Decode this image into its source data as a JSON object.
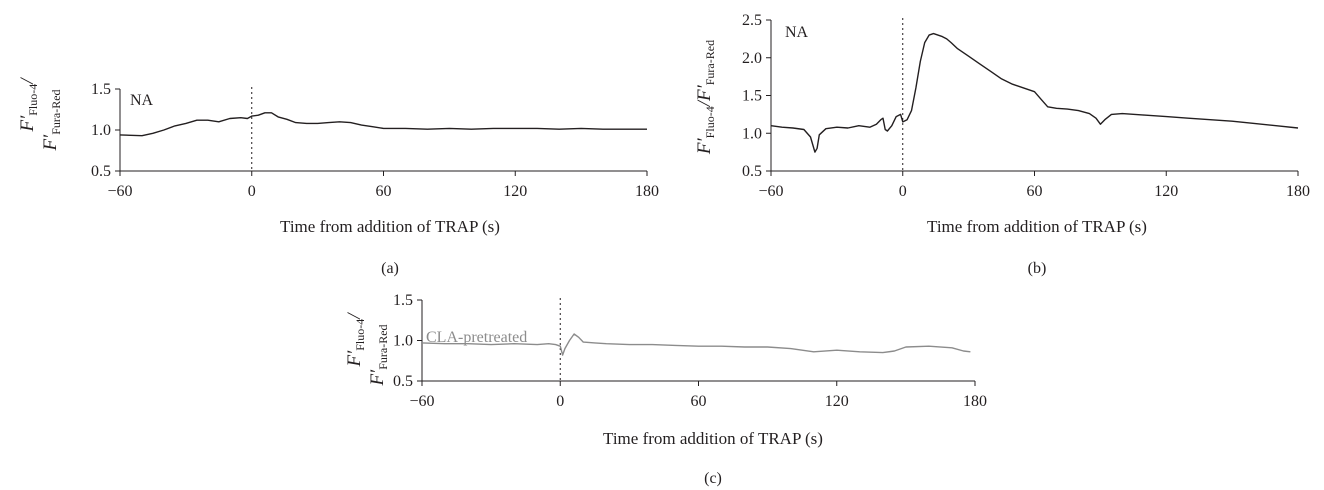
{
  "chart_data": [
    {
      "type": "line",
      "panel_label": "(a)",
      "annotation": "NA",
      "xlabel": "Time from addition of TRAP (s)",
      "ylabel": {
        "line1_main": "F′",
        "line1_sub": "Fluo-4",
        "line1_tail": "/",
        "line2_main": "F′",
        "line2_sub": "Fura-Red"
      },
      "xlim": [
        -60,
        180
      ],
      "ylim": [
        0.5,
        1.5
      ],
      "x_ticks": [
        "−60",
        "0",
        "60",
        "120",
        "180"
      ],
      "x_tick_values": [
        -60,
        0,
        60,
        120,
        180
      ],
      "y_ticks": [
        "0.5",
        "1.0",
        "1.5"
      ],
      "y_tick_values": [
        0.5,
        1.0,
        1.5
      ],
      "vline_x": 0,
      "grid": false,
      "series": [
        {
          "color": "#231f20",
          "x": [
            -60,
            -50,
            -45,
            -40,
            -35,
            -30,
            -25,
            -20,
            -15,
            -10,
            -5,
            -2,
            0,
            3,
            6,
            9,
            12,
            16,
            20,
            25,
            30,
            35,
            40,
            45,
            50,
            55,
            60,
            70,
            80,
            90,
            100,
            110,
            120,
            130,
            140,
            150,
            160,
            170,
            180
          ],
          "y": [
            0.94,
            0.93,
            0.96,
            1.0,
            1.05,
            1.08,
            1.12,
            1.12,
            1.1,
            1.14,
            1.15,
            1.14,
            1.17,
            1.18,
            1.21,
            1.21,
            1.16,
            1.13,
            1.09,
            1.08,
            1.08,
            1.09,
            1.1,
            1.09,
            1.06,
            1.04,
            1.02,
            1.02,
            1.01,
            1.02,
            1.01,
            1.02,
            1.02,
            1.02,
            1.01,
            1.02,
            1.01,
            1.01,
            1.01
          ]
        }
      ]
    },
    {
      "type": "line",
      "panel_label": "(b)",
      "annotation": "NA",
      "xlabel": "Time from addition of TRAP (s)",
      "ylabel": {
        "line1_main": "F′",
        "line1_sub": "Fluo-4",
        "line1_tail": "/F′",
        "line2_main": "",
        "line2_sub": "Fura-Red"
      },
      "xlim": [
        -60,
        180
      ],
      "ylim": [
        0.5,
        2.5
      ],
      "x_ticks": [
        "−60",
        "0",
        "60",
        "120",
        "180"
      ],
      "x_tick_values": [
        -60,
        0,
        60,
        120,
        180
      ],
      "y_ticks": [
        "0.5",
        "1.0",
        "1.5",
        "2.0",
        "2.5"
      ],
      "y_tick_values": [
        0.5,
        1.0,
        1.5,
        2.0,
        2.5
      ],
      "vline_x": 0,
      "grid": false,
      "series": [
        {
          "color": "#231f20",
          "x": [
            -60,
            -55,
            -50,
            -45,
            -42,
            -40,
            -39,
            -38,
            -35,
            -30,
            -25,
            -20,
            -15,
            -12,
            -10,
            -9,
            -8,
            -7,
            -5,
            -3,
            -1,
            0,
            2,
            4,
            6,
            8,
            10,
            12,
            14,
            16,
            18,
            20,
            22,
            25,
            30,
            35,
            40,
            45,
            50,
            55,
            60,
            63,
            66,
            70,
            75,
            80,
            85,
            88,
            90,
            92,
            95,
            100,
            110,
            120,
            130,
            140,
            150,
            160,
            170,
            180
          ],
          "y": [
            1.1,
            1.08,
            1.07,
            1.05,
            0.95,
            0.75,
            0.8,
            0.98,
            1.06,
            1.08,
            1.07,
            1.1,
            1.08,
            1.12,
            1.18,
            1.2,
            1.05,
            1.03,
            1.1,
            1.22,
            1.25,
            1.15,
            1.18,
            1.3,
            1.6,
            1.95,
            2.2,
            2.3,
            2.32,
            2.3,
            2.28,
            2.25,
            2.2,
            2.12,
            2.02,
            1.92,
            1.82,
            1.72,
            1.65,
            1.6,
            1.55,
            1.45,
            1.35,
            1.33,
            1.32,
            1.3,
            1.26,
            1.2,
            1.12,
            1.18,
            1.25,
            1.26,
            1.24,
            1.22,
            1.2,
            1.18,
            1.16,
            1.13,
            1.1,
            1.07
          ]
        }
      ]
    },
    {
      "type": "line",
      "panel_label": "(c)",
      "annotation": "CLA-pretreated",
      "xlabel": "Time from addition of TRAP (s)",
      "ylabel": {
        "line1_main": "F′",
        "line1_sub": "Fluo-4",
        "line1_tail": "/",
        "line2_main": "F′",
        "line2_sub": "Fura-Red"
      },
      "xlim": [
        -60,
        180
      ],
      "ylim": [
        0.5,
        1.5
      ],
      "x_ticks": [
        "−60",
        "0",
        "60",
        "120",
        "180"
      ],
      "x_tick_values": [
        -60,
        0,
        60,
        120,
        180
      ],
      "y_ticks": [
        "0.5",
        "1.0",
        "1.5"
      ],
      "y_tick_values": [
        0.5,
        1.0,
        1.5
      ],
      "vline_x": 0,
      "grid": false,
      "series": [
        {
          "color": "#8c8c8c",
          "x": [
            -60,
            -50,
            -40,
            -30,
            -20,
            -10,
            -5,
            -2,
            0,
            1,
            2,
            4,
            6,
            8,
            10,
            15,
            20,
            30,
            40,
            50,
            60,
            70,
            80,
            90,
            100,
            105,
            110,
            120,
            130,
            140,
            145,
            150,
            160,
            170,
            175,
            178
          ],
          "y": [
            0.97,
            0.96,
            0.96,
            0.95,
            0.96,
            0.95,
            0.96,
            0.95,
            0.93,
            0.82,
            0.9,
            1.0,
            1.08,
            1.04,
            0.98,
            0.97,
            0.96,
            0.95,
            0.95,
            0.94,
            0.93,
            0.93,
            0.92,
            0.92,
            0.9,
            0.88,
            0.86,
            0.88,
            0.86,
            0.85,
            0.87,
            0.92,
            0.93,
            0.91,
            0.87,
            0.86
          ]
        }
      ]
    }
  ]
}
